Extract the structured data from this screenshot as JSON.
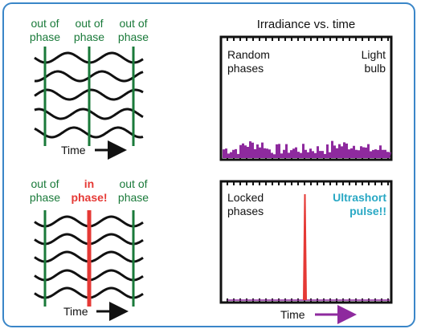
{
  "top_left": {
    "labels": [
      "out of\nphase",
      "out of\nphase",
      "out of\nphase"
    ],
    "time_label": "Time"
  },
  "bottom_left": {
    "labels": [
      "out of\nphase",
      "in\nphase!",
      "out of\nphase"
    ],
    "time_label": "Time"
  },
  "top_right": {
    "title": "Irradiance vs. time",
    "left_text": "Random\nphases",
    "right_text": "Light\nbulb"
  },
  "bottom_right": {
    "left_text": "Locked\nphases",
    "right_text": "Ultrashort\npulse!!",
    "time_label": "Time"
  },
  "colors": {
    "frame": "#3a86c8",
    "green": "#1a7a3a",
    "red": "#e53935",
    "purple": "#8e2a9e",
    "cyan": "#29a8c4"
  }
}
